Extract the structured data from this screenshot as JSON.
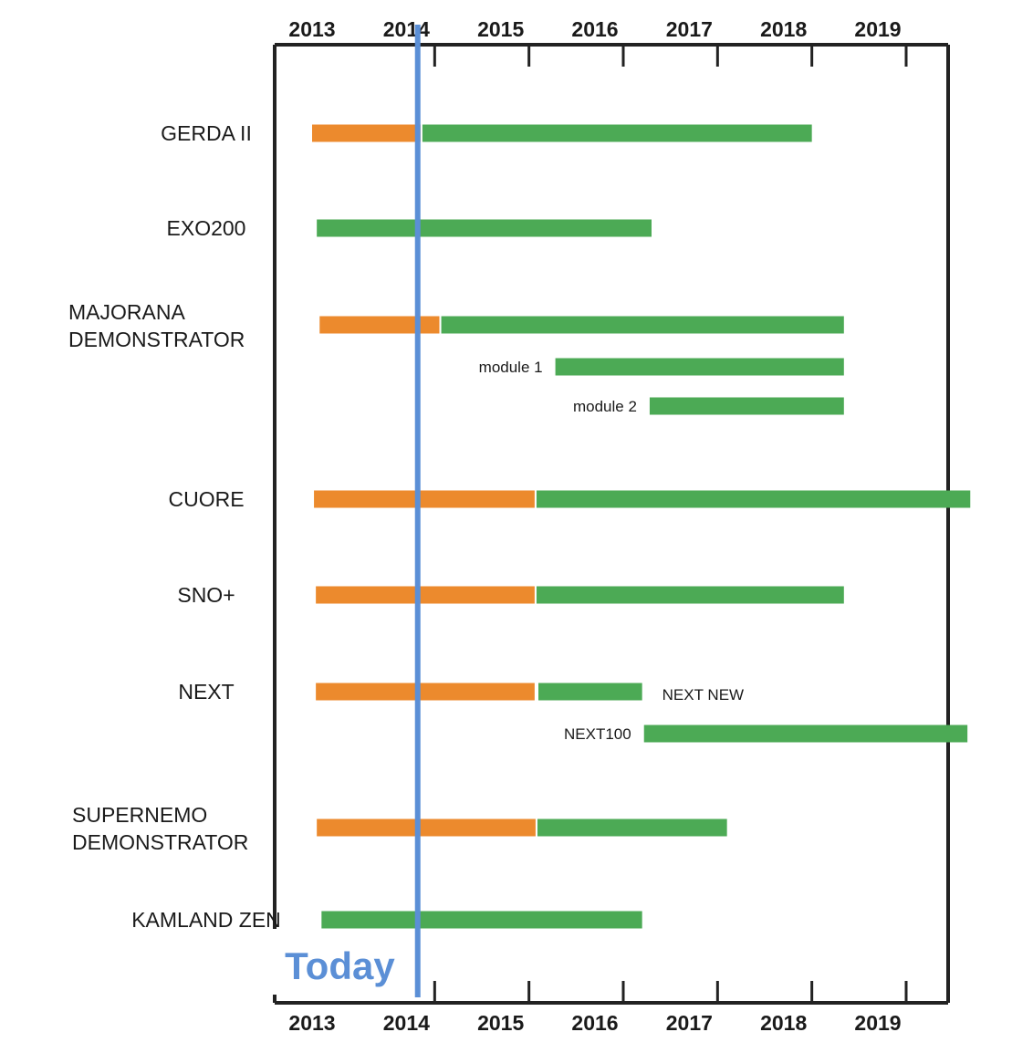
{
  "chart_data": {
    "type": "timeline",
    "x_range": [
      2012.6,
      2019.95
    ],
    "ticks": [
      "2013",
      "2014",
      "2015",
      "2016",
      "2017",
      "2018",
      "2019"
    ],
    "tick_marks": [
      2014.0,
      2015.0,
      2016.0,
      2017.0,
      2018.0,
      2019.0
    ],
    "today": {
      "label": "Today",
      "value": 2013.82
    },
    "colors": {
      "orange": "#ec8a2d",
      "green": "#4caa55",
      "today": "#5b8fd6",
      "axis": "#222222"
    },
    "experiments": [
      {
        "label_lines": [
          "GERDA II"
        ],
        "bars": [
          {
            "start": 2012.7,
            "end": 2013.85,
            "color": "orange"
          },
          {
            "start": 2013.87,
            "end": 2018.0,
            "color": "green"
          }
        ]
      },
      {
        "label_lines": [
          "EXO200"
        ],
        "bars": [
          {
            "start": 2012.75,
            "end": 2016.3,
            "color": "green"
          }
        ]
      },
      {
        "label_lines": [
          "MAJORANA",
          "DEMONSTRATOR"
        ],
        "bars": [
          {
            "start": 2012.78,
            "end": 2014.05,
            "color": "orange"
          },
          {
            "start": 2014.07,
            "end": 2018.34,
            "color": "green"
          }
        ],
        "sub_rows": [
          {
            "label": "module 1",
            "bars": [
              {
                "start": 2015.28,
                "end": 2018.34,
                "color": "green"
              }
            ]
          },
          {
            "label": "module 2",
            "bars": [
              {
                "start": 2016.28,
                "end": 2018.34,
                "color": "green"
              }
            ]
          }
        ]
      },
      {
        "label_lines": [
          "CUORE"
        ],
        "bars": [
          {
            "start": 2012.72,
            "end": 2015.06,
            "color": "orange"
          },
          {
            "start": 2015.08,
            "end": 2019.68,
            "color": "green"
          }
        ]
      },
      {
        "label_lines": [
          "SNO+"
        ],
        "bars": [
          {
            "start": 2012.74,
            "end": 2015.06,
            "color": "orange"
          },
          {
            "start": 2015.08,
            "end": 2018.34,
            "color": "green"
          }
        ]
      },
      {
        "label_lines": [
          "NEXT"
        ],
        "bars": [
          {
            "start": 2012.74,
            "end": 2015.06,
            "color": "orange"
          },
          {
            "start": 2015.1,
            "end": 2016.2,
            "color": "green"
          }
        ],
        "note": "NEXT NEW",
        "sub_rows": [
          {
            "label": "NEXT100",
            "bars": [
              {
                "start": 2016.22,
                "end": 2019.65,
                "color": "green"
              }
            ]
          }
        ]
      },
      {
        "label_lines": [
          "SUPERNEMO",
          "DEMONSTRATOR"
        ],
        "bars": [
          {
            "start": 2012.75,
            "end": 2015.07,
            "color": "orange"
          },
          {
            "start": 2015.09,
            "end": 2017.1,
            "color": "green"
          }
        ]
      },
      {
        "label_lines": [
          "KAMLAND ZEN"
        ],
        "bars": [
          {
            "start": 2012.8,
            "end": 2016.2,
            "color": "green"
          }
        ]
      }
    ]
  }
}
